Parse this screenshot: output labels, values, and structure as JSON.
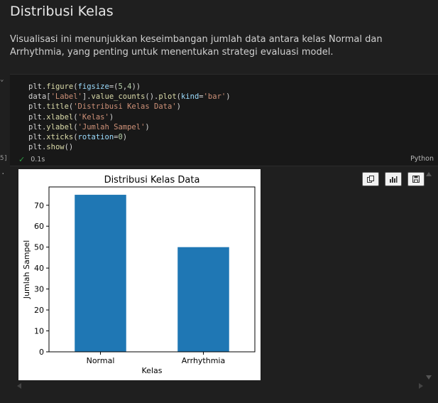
{
  "markdown": {
    "title": "Distribusi Kelas",
    "description": "Visualisasi ini menunjukkan keseimbangan jumlah data antara kelas Normal dan Arrhythmia, yang penting untuk menentukan strategi evaluasi model."
  },
  "cell": {
    "number": "5]",
    "status_time": "0.1s",
    "language": "Python",
    "code_lines": [
      "plt.figure(figsize=(5,4))",
      "data['Label'].value_counts().plot(kind='bar')",
      "plt.title('Distribusi Kelas Data')",
      "plt.xlabel('Kelas')",
      "plt.ylabel('Jumlah Sampel')",
      "plt.xticks(rotation=0)",
      "plt.show()"
    ]
  },
  "output_toolbar": {
    "icons": [
      "copy-icon",
      "chart-icon",
      "save-icon"
    ]
  },
  "colors": {
    "bar": "#1f77b4",
    "background": "#1f1f1f",
    "check": "#2ea043"
  },
  "chart_data": {
    "type": "bar",
    "title": "Distribusi Kelas Data",
    "xlabel": "Kelas",
    "ylabel": "Jumlah Sampel",
    "categories": [
      "Normal",
      "Arrhythmia"
    ],
    "values": [
      75,
      50
    ],
    "yticks": [
      0,
      10,
      20,
      30,
      40,
      50,
      60,
      70
    ],
    "ylim": [
      0,
      78.75
    ],
    "grid": false
  }
}
